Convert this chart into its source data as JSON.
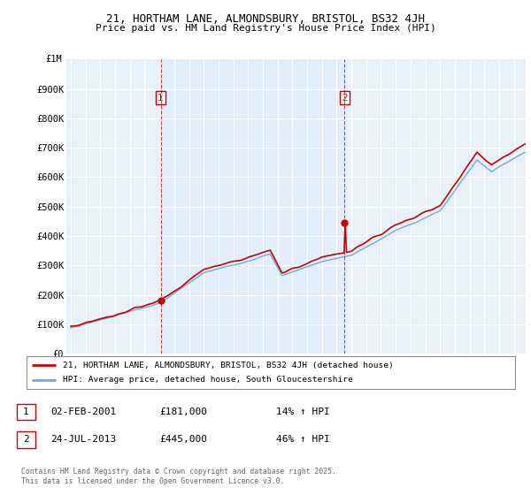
{
  "title": "21, HORTHAM LANE, ALMONDSBURY, BRISTOL, BS32 4JH",
  "subtitle": "Price paid vs. HM Land Registry's House Price Index (HPI)",
  "legend_line1": "21, HORTHAM LANE, ALMONDSBURY, BRISTOL, BS32 4JH (detached house)",
  "legend_line2": "HPI: Average price, detached house, South Gloucestershire",
  "sale1_date": "02-FEB-2001",
  "sale1_price": 181000,
  "sale1_label": "14% ↑ HPI",
  "sale2_date": "24-JUL-2013",
  "sale2_price": 445000,
  "sale2_label": "46% ↑ HPI",
  "footnote": "Contains HM Land Registry data © Crown copyright and database right 2025.\nThis data is licensed under the Open Government Licence v3.0.",
  "red_color": "#cc0000",
  "blue_color": "#6baed6",
  "shade_color": "#ddeeff",
  "background_color": "#ffffff",
  "grid_color": "#c8d8e8",
  "ylim": [
    0,
    1000000
  ],
  "xlim_start": 1994.7,
  "xlim_end": 2025.8,
  "sale1_year": 2001.083,
  "sale2_year": 2013.542
}
